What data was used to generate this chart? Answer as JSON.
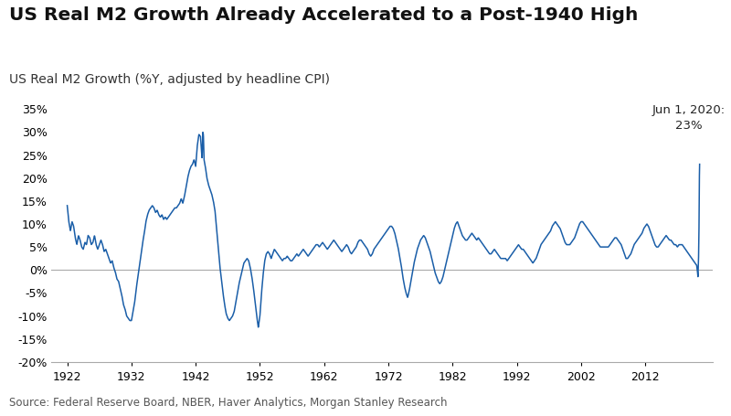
{
  "title": "US Real M2 Growth Already Accelerated to a Post-1940 High",
  "subtitle": "US Real M2 Growth (%Y, adjusted by headline CPI)",
  "source": "Source: Federal Reserve Board, NBER, Haver Analytics, Morgan Stanley Research",
  "line_color": "#1a5ea8",
  "background_color": "#ffffff",
  "annotation_text": "Jun 1, 2020:\n23%",
  "ylim": [
    -20,
    37
  ],
  "yticks": [
    -20,
    -15,
    -10,
    -5,
    0,
    5,
    10,
    15,
    20,
    25,
    30,
    35
  ],
  "xlim": [
    1919.5,
    2022.5
  ],
  "xticks": [
    1922,
    1932,
    1942,
    1952,
    1962,
    1972,
    1982,
    1992,
    2002,
    2012
  ]
}
